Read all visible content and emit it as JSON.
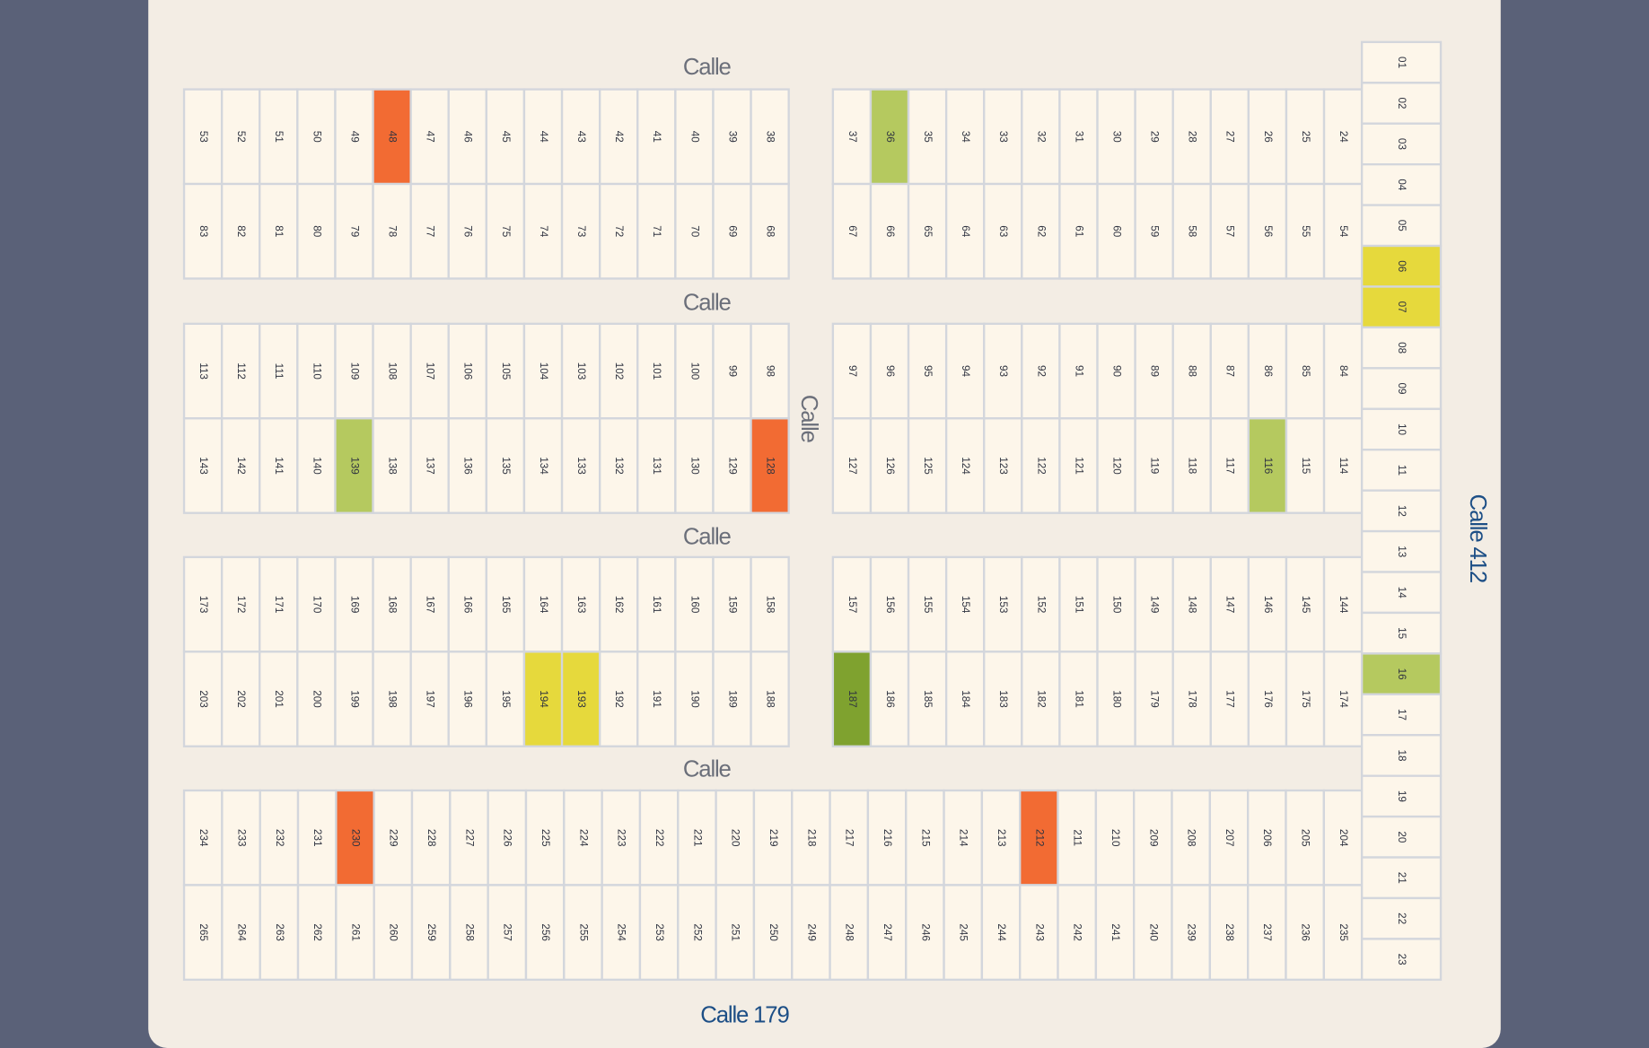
{
  "streets": {
    "top": "Calle",
    "second": "Calle",
    "third": "Calle",
    "fourth": "Calle",
    "middle": "Calle",
    "right": "Calle 412",
    "bottom": "Calle 179"
  },
  "blocks": [
    {
      "rows": [
        [
          "53",
          "52",
          "51",
          "50",
          "49",
          {
            "label": "48",
            "color": "#f26b33"
          },
          "47",
          "46",
          "45",
          "44",
          "43",
          "42",
          "41",
          "40",
          "39",
          "38"
        ],
        [
          "83",
          "82",
          "81",
          "80",
          "79",
          "78",
          "77",
          "76",
          "75",
          "74",
          "73",
          "72",
          "71",
          "70",
          "69",
          "68"
        ]
      ]
    },
    {
      "rows": [
        [
          "37",
          {
            "label": "36",
            "color": "#b5c95f"
          },
          "35",
          "34",
          "33",
          "32",
          "31",
          "30",
          "29",
          "28",
          "27",
          "26",
          "25",
          "24"
        ],
        [
          "67",
          "66",
          "65",
          "64",
          "63",
          "62",
          "61",
          "60",
          "59",
          "58",
          "57",
          "56",
          "55",
          "54"
        ]
      ]
    },
    {
      "rows": [
        [
          "113",
          "112",
          "111",
          "110",
          "109",
          "108",
          "107",
          "106",
          "105",
          "104",
          "103",
          "102",
          "101",
          "100",
          "99",
          "98"
        ],
        [
          "143",
          "142",
          "141",
          "140",
          {
            "label": "139",
            "color": "#b5c95f"
          },
          "138",
          "137",
          "136",
          "135",
          "134",
          "133",
          "132",
          "131",
          "130",
          "129",
          {
            "label": "128",
            "color": "#f26b33"
          }
        ]
      ]
    },
    {
      "rows": [
        [
          "97",
          "96",
          "95",
          "94",
          "93",
          "92",
          "91",
          "90",
          "89",
          "88",
          "87",
          "86",
          "85",
          "84"
        ],
        [
          "127",
          "126",
          "125",
          "124",
          "123",
          "122",
          "121",
          "120",
          "119",
          "118",
          "117",
          {
            "label": "116",
            "color": "#b5c95f"
          },
          "115",
          "114"
        ]
      ]
    },
    {
      "rows": [
        [
          "173",
          "172",
          "171",
          "170",
          "169",
          "168",
          "167",
          "166",
          "165",
          "164",
          "163",
          "162",
          "161",
          "160",
          "159",
          "158"
        ],
        [
          "203",
          "202",
          "201",
          "200",
          "199",
          "198",
          "197",
          "196",
          "195",
          {
            "label": "194",
            "color": "#e6d93c"
          },
          {
            "label": "193",
            "color": "#e6d93c"
          },
          "192",
          "191",
          "190",
          "189",
          "188"
        ]
      ]
    },
    {
      "rows": [
        [
          "157",
          "156",
          "155",
          "154",
          "153",
          "152",
          "151",
          "150",
          "149",
          "148",
          "147",
          "146",
          "145",
          "144"
        ],
        [
          {
            "label": "187",
            "color": "#7fa22f"
          },
          "186",
          "185",
          "184",
          "183",
          "182",
          "181",
          "180",
          "179",
          "178",
          "177",
          "176",
          "175",
          "174"
        ]
      ]
    },
    {
      "rows": [
        [
          "234",
          "233",
          "232",
          "231",
          {
            "label": "230",
            "color": "#f26b33"
          },
          "229",
          "228",
          "227",
          "226",
          "225",
          "224",
          "223",
          "222",
          "221",
          "220",
          "219",
          "218",
          "217",
          "216",
          "215",
          "214",
          "213",
          {
            "label": "212",
            "color": "#f26b33"
          },
          "211",
          "210",
          "209",
          "208",
          "207",
          "206",
          "205",
          "204"
        ],
        [
          "265",
          "264",
          "263",
          "262",
          "261",
          "260",
          "259",
          "258",
          "257",
          "256",
          "255",
          "254",
          "253",
          "252",
          "251",
          "250",
          "249",
          "248",
          "247",
          "246",
          "245",
          "244",
          "243",
          "242",
          "241",
          "240",
          "239",
          "238",
          "237",
          "236",
          "235"
        ]
      ]
    }
  ],
  "right_column": [
    "01",
    "02",
    "03",
    "04",
    "05",
    {
      "label": "06",
      "color": "#e6d93c"
    },
    {
      "label": "07",
      "color": "#e6d93c"
    },
    "08",
    "09",
    "10",
    "11",
    "12",
    "13",
    "14",
    "15",
    {
      "label": "16",
      "color": "#b5c95f"
    },
    "17",
    "18",
    "19",
    "20",
    "21",
    "22",
    "23"
  ]
}
